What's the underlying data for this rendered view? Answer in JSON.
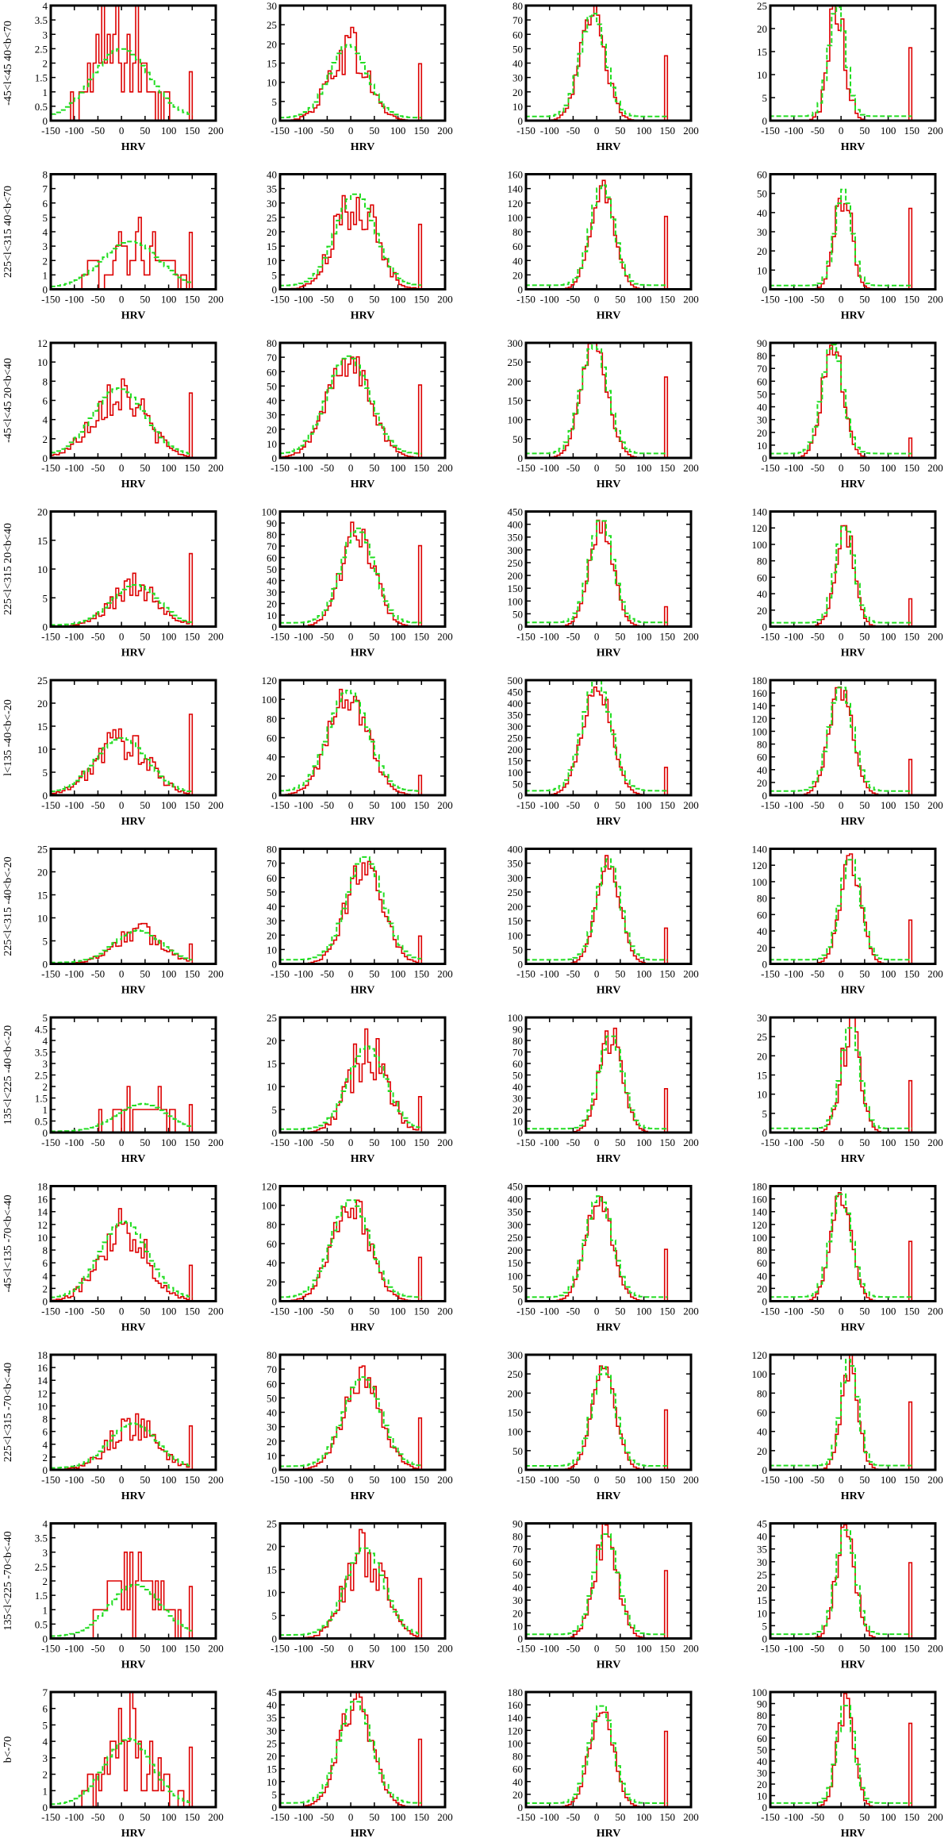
{
  "figure": {
    "rows": [
      {
        "label": "-45<l<45  40<b<70",
        "ymaxes": [
          4,
          30,
          80,
          25
        ]
      },
      {
        "label": "225<l<315 40<b<70",
        "ymaxes": [
          8,
          40,
          160,
          60
        ]
      },
      {
        "label": "-45<l<45  20<b<40",
        "ymaxes": [
          12,
          80,
          300,
          90
        ]
      },
      {
        "label": "225<l<315 20<b<40",
        "ymaxes": [
          20,
          100,
          450,
          140
        ]
      },
      {
        "label": "l<135 -40<b<-20",
        "ymaxes": [
          25,
          120,
          500,
          180
        ]
      },
      {
        "label": "225<l<315 -40<b<-20",
        "ymaxes": [
          25,
          80,
          400,
          140
        ]
      },
      {
        "label": "135<l<225 -40<b<-20",
        "ymaxes": [
          5,
          25,
          100,
          30
        ]
      },
      {
        "label": "-45<l<135 -70<b<-40",
        "ymaxes": [
          18,
          120,
          450,
          180
        ]
      },
      {
        "label": "225<l<315 -70<b<-40",
        "ymaxes": [
          18,
          80,
          300,
          120
        ]
      },
      {
        "label": "135<l<225 -70<b<-40",
        "ymaxes": [
          4,
          25,
          90,
          45
        ]
      },
      {
        "label": "b<-70",
        "ymaxes": [
          7,
          45,
          180,
          100
        ]
      }
    ]
  },
  "chart_data": {
    "type": "histogram-grid",
    "n_rows": 11,
    "n_cols": 4,
    "xlabel": "HRV",
    "xlim": [
      -150,
      200
    ],
    "xticks": [
      -150,
      -100,
      -50,
      0,
      50,
      100,
      150,
      200
    ],
    "bin_range": [
      -150,
      150
    ],
    "bin_width": 6,
    "series": [
      {
        "name": "",
        "color": "#dd0000",
        "style": "step"
      },
      {
        "name": "",
        "color": "#22dd22",
        "style": "dashed"
      }
    ],
    "rows": [
      {
        "row_label": "-45<l<45  40<b<70",
        "ylims": [
          4,
          30,
          80,
          25
        ],
        "peaks": [
          2.4,
          19,
          72,
          24
        ],
        "centers": [
          0,
          -5,
          -8,
          -8
        ],
        "sigmas": [
          60,
          40,
          27,
          18
        ]
      },
      {
        "row_label": "225<l<315 40<b<70",
        "ylims": [
          8,
          40,
          160,
          60
        ],
        "peaks": [
          3.2,
          32,
          140,
          50
        ],
        "centers": [
          20,
          10,
          12,
          5
        ],
        "sigmas": [
          60,
          42,
          25,
          18
        ]
      },
      {
        "row_label": "-45<l<45  20<b<40",
        "ylims": [
          12,
          80,
          300,
          90
        ],
        "peaks": [
          7,
          68,
          290,
          86
        ],
        "centers": [
          -5,
          -5,
          -5,
          -18
        ],
        "sigmas": [
          55,
          45,
          28,
          22
        ]
      },
      {
        "row_label": "225<l<315 20<b<40",
        "ylims": [
          20,
          100,
          450,
          140
        ],
        "peaks": [
          7,
          82,
          405,
          118
        ],
        "centers": [
          30,
          15,
          10,
          8
        ],
        "sigmas": [
          50,
          35,
          25,
          20
        ]
      },
      {
        "row_label": "l<135 -40<b<-20",
        "ylims": [
          25,
          120,
          500,
          180
        ],
        "peaks": [
          12,
          105,
          485,
          165
        ],
        "centers": [
          0,
          -5,
          0,
          0
        ],
        "sigmas": [
          55,
          42,
          30,
          25
        ]
      },
      {
        "row_label": "225<l<315 -40<b<-20",
        "ylims": [
          25,
          80,
          400,
          140
        ],
        "peaks": [
          7,
          72,
          350,
          125
        ],
        "centers": [
          35,
          30,
          25,
          20
        ],
        "sigmas": [
          50,
          38,
          25,
          22
        ]
      },
      {
        "row_label": "135<l<225 -40<b<-20",
        "ylims": [
          5,
          25,
          100,
          30
        ],
        "peaks": [
          1.2,
          18,
          82,
          27
        ],
        "centers": [
          45,
          35,
          30,
          20
        ],
        "sigmas": [
          55,
          40,
          25,
          20
        ]
      },
      {
        "row_label": "-45<l<135 -70<b<-40",
        "ylims": [
          18,
          120,
          450,
          180
        ],
        "peaks": [
          12,
          102,
          395,
          165
        ],
        "centers": [
          5,
          0,
          5,
          0
        ],
        "sigmas": [
          50,
          40,
          28,
          22
        ]
      },
      {
        "row_label": "225<l<315 -70<b<-40",
        "ylims": [
          18,
          80,
          300,
          120
        ],
        "peaks": [
          7,
          62,
          258,
          112
        ],
        "centers": [
          25,
          25,
          15,
          18
        ],
        "sigmas": [
          50,
          40,
          25,
          18
        ]
      },
      {
        "row_label": "135<l<225 -70<b<-40",
        "ylims": [
          4,
          25,
          90,
          45
        ],
        "peaks": [
          1.8,
          19,
          80,
          42
        ],
        "centers": [
          30,
          30,
          20,
          10
        ],
        "sigmas": [
          55,
          40,
          25,
          20
        ]
      },
      {
        "row_label": "b<-70",
        "ylims": [
          7,
          45,
          180,
          100
        ],
        "peaks": [
          4,
          40,
          155,
          88
        ],
        "centers": [
          15,
          10,
          10,
          10
        ],
        "sigmas": [
          50,
          35,
          25,
          18
        ]
      }
    ]
  }
}
